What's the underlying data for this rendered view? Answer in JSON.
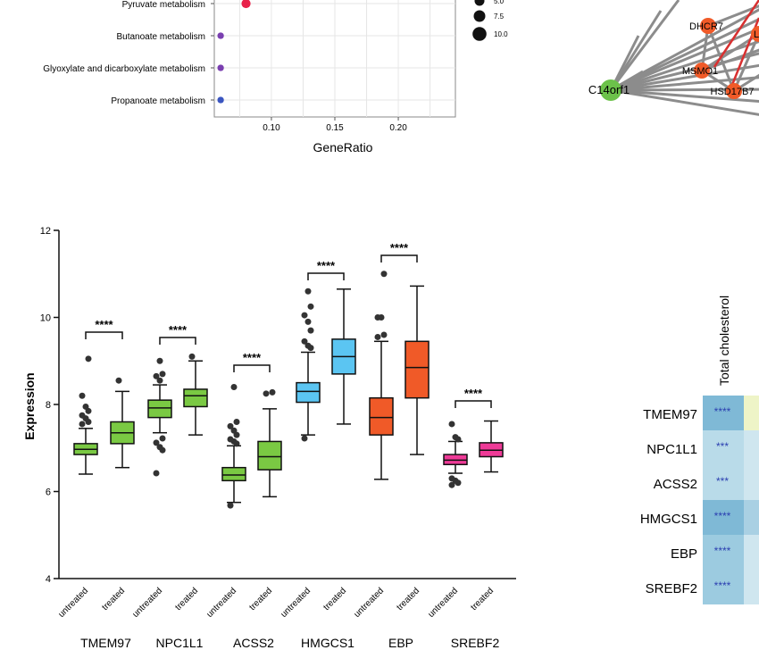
{
  "chart_data": [
    {
      "type": "scatter",
      "xlabel": "GeneRatio",
      "x_ticks": [
        "0.10",
        "0.15",
        "0.20"
      ],
      "xlim": [
        0.055,
        0.245
      ],
      "categories": [
        "Pyruvate metabolism",
        "Butanoate metabolism",
        "Glyoxylate and dicarboxylate metabolism",
        "Propanoate metabolism"
      ],
      "points": [
        {
          "term": "Pyruvate metabolism",
          "gene_ratio": 0.08,
          "count": 5,
          "color": "#e8214a"
        },
        {
          "term": "Butanoate metabolism",
          "gene_ratio": 0.06,
          "count": 2.5,
          "color": "#7a3fb0"
        },
        {
          "term": "Glyoxylate and dicarboxylate metabolism",
          "gene_ratio": 0.06,
          "count": 2.5,
          "color": "#7a3fb0"
        },
        {
          "term": "Propanoate metabolism",
          "gene_ratio": 0.06,
          "count": 2.5,
          "color": "#3a55c0"
        }
      ],
      "size_legend": [
        "5.0",
        "7.5",
        "10.0"
      ],
      "grid": true
    },
    {
      "type": "network",
      "nodes": [
        {
          "label": "C14orf1",
          "color": "#6cc24a"
        },
        {
          "label": "DHCR7",
          "color": "#f05a28"
        },
        {
          "label": "MSMO1",
          "color": "#f05a28"
        },
        {
          "label": "HSD17B7",
          "color": "#f05a28"
        },
        {
          "label": "LS",
          "color": "#f05a28"
        }
      ]
    },
    {
      "type": "box",
      "ylabel": "Expression",
      "ylim": [
        4,
        12
      ],
      "y_ticks": [
        "4",
        "6",
        "8",
        "10",
        "12"
      ],
      "significance": "****",
      "genes": [
        "TMEM97",
        "NPC1L1",
        "ACSS2",
        "HMGCS1",
        "EBP",
        "SREBF2"
      ],
      "conditions": [
        "untreated",
        "treated"
      ],
      "boxes": [
        {
          "gene": "TMEM97",
          "condition": "untreated",
          "color": "#7ac943",
          "min": 6.4,
          "q1": 6.85,
          "median": 6.97,
          "q3": 7.1,
          "max": 7.45,
          "outliers": [
            7.55,
            7.6,
            7.68,
            7.75,
            7.85,
            7.95,
            8.2,
            9.05
          ]
        },
        {
          "gene": "TMEM97",
          "condition": "treated",
          "color": "#7ac943",
          "min": 6.55,
          "q1": 7.1,
          "median": 7.35,
          "q3": 7.6,
          "max": 8.3,
          "outliers": [
            8.55
          ]
        },
        {
          "gene": "NPC1L1",
          "condition": "untreated",
          "color": "#7ac943",
          "min": 7.35,
          "q1": 7.7,
          "median": 7.92,
          "q3": 8.1,
          "max": 8.45,
          "outliers": [
            6.42,
            6.95,
            7.02,
            7.12,
            7.22,
            8.55,
            8.65,
            8.7,
            9.0
          ]
        },
        {
          "gene": "NPC1L1",
          "condition": "treated",
          "color": "#7ac943",
          "min": 7.3,
          "q1": 7.95,
          "median": 8.2,
          "q3": 8.35,
          "max": 9.0,
          "outliers": [
            9.1
          ]
        },
        {
          "gene": "ACSS2",
          "condition": "untreated",
          "color": "#7ac943",
          "min": 5.75,
          "q1": 6.25,
          "median": 6.38,
          "q3": 6.55,
          "max": 7.05,
          "outliers": [
            5.68,
            7.1,
            7.15,
            7.2,
            7.3,
            7.4,
            7.5,
            7.6,
            8.4
          ]
        },
        {
          "gene": "ACSS2",
          "condition": "treated",
          "color": "#7ac943",
          "min": 5.88,
          "q1": 6.5,
          "median": 6.8,
          "q3": 7.15,
          "max": 7.9,
          "outliers": [
            8.25,
            8.28
          ]
        },
        {
          "gene": "HMGCS1",
          "condition": "untreated",
          "color": "#5bc5f2",
          "min": 7.3,
          "q1": 8.05,
          "median": 8.3,
          "q3": 8.5,
          "max": 9.2,
          "outliers": [
            7.22,
            9.3,
            9.35,
            9.45,
            9.7,
            9.9,
            10.05,
            10.25,
            10.6
          ]
        },
        {
          "gene": "HMGCS1",
          "condition": "treated",
          "color": "#5bc5f2",
          "min": 7.55,
          "q1": 8.7,
          "median": 9.1,
          "q3": 9.5,
          "max": 10.65,
          "outliers": []
        },
        {
          "gene": "EBP",
          "condition": "untreated",
          "color": "#f05a28",
          "min": 6.28,
          "q1": 7.3,
          "median": 7.7,
          "q3": 8.15,
          "max": 9.45,
          "outliers": [
            9.55,
            9.6,
            10.0,
            10.0,
            11.0
          ]
        },
        {
          "gene": "EBP",
          "condition": "treated",
          "color": "#f05a28",
          "min": 6.85,
          "q1": 8.15,
          "median": 8.85,
          "q3": 9.45,
          "max": 10.72,
          "outliers": []
        },
        {
          "gene": "SREBF2",
          "condition": "untreated",
          "color": "#ee3a97",
          "min": 6.42,
          "q1": 6.62,
          "median": 6.72,
          "q3": 6.85,
          "max": 7.15,
          "outliers": [
            6.15,
            6.2,
            6.25,
            6.3,
            7.2,
            7.25,
            7.55
          ]
        },
        {
          "gene": "SREBF2",
          "condition": "treated",
          "color": "#ee3a97",
          "min": 6.45,
          "q1": 6.8,
          "median": 6.95,
          "q3": 7.12,
          "max": 7.62,
          "outliers": []
        }
      ]
    },
    {
      "type": "heatmap",
      "column_header": "Total cholesterol",
      "rows": [
        "TMEM97",
        "NPC1L1",
        "ACSS2",
        "HMGCS1",
        "EBP",
        "SREBF2"
      ],
      "cells": [
        "****",
        "***",
        "***",
        "****",
        "****",
        "****"
      ]
    }
  ]
}
